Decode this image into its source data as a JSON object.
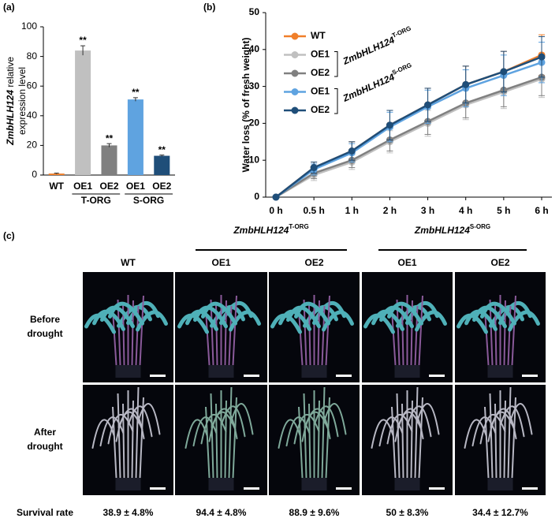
{
  "panel_labels": [
    "(a)",
    "(b)",
    "(c)"
  ],
  "chart_data": [
    {
      "type": "bar",
      "ylabel": [
        "ZmbHLH124",
        "relative",
        "expression level"
      ],
      "categories": [
        "WT",
        "OE1",
        "OE2",
        "OE1",
        "OE2"
      ],
      "category_groups": [
        null,
        "T-ORG",
        "T-ORG",
        "S-ORG",
        "S-ORG"
      ],
      "values": [
        1,
        84,
        20,
        51,
        13
      ],
      "errors": [
        0.3,
        3.2,
        1.2,
        1.2,
        0.5
      ],
      "significance": [
        null,
        "**",
        "**",
        "**",
        "**"
      ],
      "colors": [
        "#f07f2a",
        "#c0c0c0",
        "#808080",
        "#5fa3e0",
        "#1f4e79"
      ],
      "ylim": [
        0,
        100
      ],
      "yticks": [
        0,
        20,
        40,
        60,
        80,
        100
      ]
    },
    {
      "type": "line",
      "ylabel": "Water loss (% of fresh weight)",
      "legend_gene": "ZmbHLH124",
      "x": [
        "0 h",
        "0.5 h",
        "1 h",
        "2 h",
        "3 h",
        "4 h",
        "5 h",
        "6 h"
      ],
      "series": [
        {
          "name": "WT",
          "color": "#f07f2a",
          "group": null,
          "values": [
            0,
            8,
            12.5,
            19.5,
            25,
            30.5,
            34,
            38.5
          ],
          "errors": [
            0,
            1.5,
            2.5,
            4,
            4.5,
            5,
            5.5,
            5.5
          ]
        },
        {
          "name": "OE1",
          "color": "#c0c0c0",
          "group": "T-ORG",
          "values": [
            0,
            6,
            9.5,
            15,
            20,
            25,
            28.5,
            32
          ],
          "errors": [
            0,
            1.5,
            2,
            3,
            3.5,
            4,
            4.5,
            5
          ]
        },
        {
          "name": "OE2",
          "color": "#808080",
          "group": "T-ORG",
          "values": [
            0,
            6.5,
            10,
            15.5,
            20.5,
            25.5,
            29,
            32.5
          ],
          "errors": [
            0,
            1.5,
            2,
            3,
            3.5,
            4,
            4.5,
            5
          ]
        },
        {
          "name": "OE1",
          "color": "#5fa3e0",
          "group": "S-ORG",
          "values": [
            0,
            7.5,
            12,
            19,
            24.5,
            29.5,
            33,
            36.5
          ],
          "errors": [
            0,
            1.5,
            2.5,
            4,
            4.5,
            5,
            5.5,
            5.5
          ]
        },
        {
          "name": "OE2",
          "color": "#1f4e79",
          "group": "S-ORG",
          "values": [
            0,
            8,
            12.5,
            19.5,
            25,
            30.5,
            34,
            38
          ],
          "errors": [
            0,
            1.5,
            2.5,
            4,
            4.5,
            5,
            5.5,
            5.5
          ]
        }
      ],
      "ylim": [
        0,
        50
      ],
      "yticks": [
        0,
        10,
        20,
        30,
        40,
        50
      ]
    }
  ],
  "photo_panel": {
    "gene": "ZmbHLH124",
    "groups": [
      "T-ORG",
      "S-ORG"
    ],
    "columns": [
      "WT",
      "OE1",
      "OE2",
      "OE1",
      "OE2"
    ],
    "rows": [
      [
        "Before",
        "drought"
      ],
      [
        "After",
        "drought"
      ]
    ],
    "survival_label": "Survival rate",
    "survival": [
      "38.9 ± 4.8%",
      "94.4 ± 4.8%",
      "88.9 ± 9.6%",
      "50 ± 8.3%",
      "34.4 ± 12.7%"
    ]
  }
}
